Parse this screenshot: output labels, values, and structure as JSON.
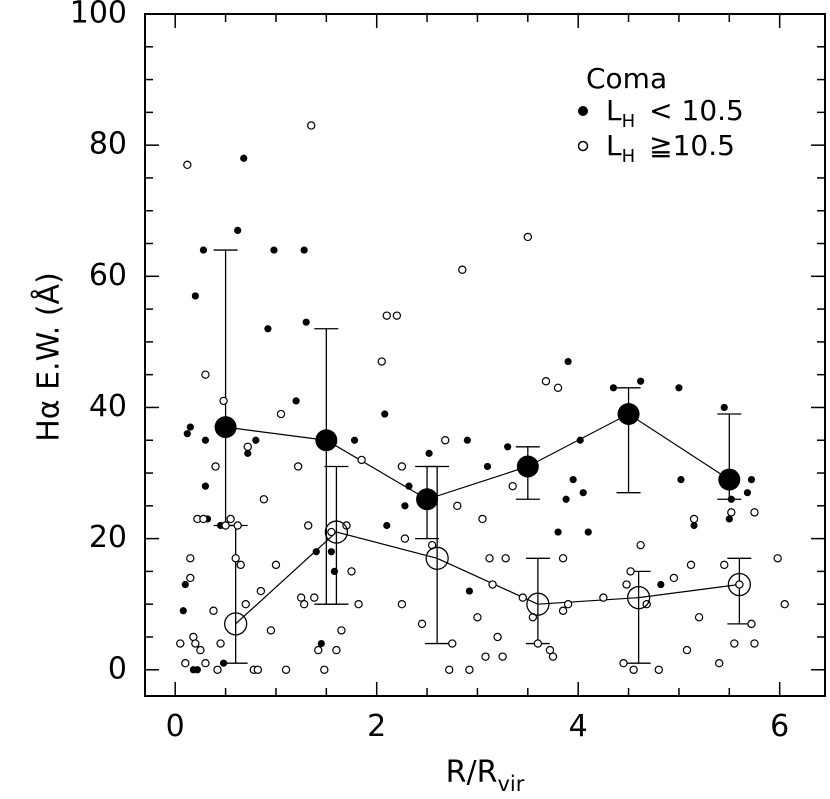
{
  "chart_data": {
    "type": "scatter",
    "title": "",
    "xlabel": {
      "base": "R/R",
      "sub": "vir"
    },
    "ylabel": "Hα   E.W. (Å)",
    "xlim": [
      -0.3,
      6.45
    ],
    "ylim": [
      -4,
      100
    ],
    "x_ticks": [
      0,
      2,
      4,
      6
    ],
    "x_tick_labels": [
      "0",
      "2",
      "4",
      "6"
    ],
    "y_ticks": [
      0,
      20,
      40,
      60,
      80,
      100
    ],
    "y_tick_labels": [
      "0",
      "20",
      "40",
      "60",
      "80",
      "100"
    ],
    "grid": false,
    "legend": {
      "placement": "top-right",
      "title": "Coma",
      "entries": [
        {
          "marker": "filled",
          "base": "L",
          "sub": "H",
          "rest": "< 10.5"
        },
        {
          "marker": "open",
          "base": "L",
          "sub": "H",
          "rest": "≧10.5"
        }
      ]
    },
    "series": [
      {
        "name": "L_H < 10.5 binned",
        "style": "filled-large",
        "x": [
          0.5,
          1.5,
          2.5,
          3.5,
          4.5,
          5.5
        ],
        "y": [
          37,
          35,
          26,
          31,
          39,
          29
        ],
        "err_low": [
          22,
          10,
          20,
          26,
          27,
          26
        ],
        "err_high": [
          64,
          52,
          31,
          34,
          43,
          39
        ]
      },
      {
        "name": "L_H >= 10.5 binned",
        "style": "open-large",
        "x": [
          0.6,
          1.6,
          2.6,
          3.6,
          4.6,
          5.6
        ],
        "y": [
          7,
          21,
          17,
          10,
          11,
          13
        ],
        "err_low": [
          1,
          10,
          4,
          4,
          1,
          7
        ],
        "err_high": [
          22,
          31,
          31,
          17,
          15,
          17
        ]
      },
      {
        "name": "L_H < 10.5 individual",
        "style": "filled-small",
        "points": [
          [
            0.08,
            9
          ],
          [
            0.1,
            13
          ],
          [
            0.12,
            36
          ],
          [
            0.15,
            37
          ],
          [
            0.18,
            0
          ],
          [
            0.2,
            57
          ],
          [
            0.22,
            0
          ],
          [
            0.28,
            64
          ],
          [
            0.3,
            35
          ],
          [
            0.3,
            28
          ],
          [
            0.32,
            23
          ],
          [
            0.45,
            22
          ],
          [
            0.48,
            1
          ],
          [
            0.62,
            67
          ],
          [
            0.68,
            78
          ],
          [
            0.72,
            33
          ],
          [
            0.8,
            35
          ],
          [
            0.92,
            52
          ],
          [
            0.98,
            64
          ],
          [
            1.2,
            41
          ],
          [
            1.28,
            64
          ],
          [
            1.3,
            53
          ],
          [
            1.4,
            18
          ],
          [
            1.45,
            4
          ],
          [
            1.55,
            18
          ],
          [
            1.58,
            15
          ],
          [
            1.78,
            35
          ],
          [
            2.08,
            39
          ],
          [
            2.1,
            22
          ],
          [
            2.28,
            25
          ],
          [
            2.32,
            28
          ],
          [
            2.52,
            33
          ],
          [
            2.55,
            19
          ],
          [
            2.9,
            35
          ],
          [
            2.92,
            12
          ],
          [
            3.1,
            31
          ],
          [
            3.3,
            34
          ],
          [
            3.8,
            21
          ],
          [
            3.88,
            26
          ],
          [
            3.9,
            47
          ],
          [
            3.95,
            29
          ],
          [
            4.02,
            35
          ],
          [
            4.05,
            27
          ],
          [
            4.1,
            21
          ],
          [
            4.35,
            43
          ],
          [
            4.5,
            40
          ],
          [
            4.62,
            44
          ],
          [
            4.82,
            13
          ],
          [
            5.0,
            43
          ],
          [
            5.02,
            29
          ],
          [
            5.15,
            22
          ],
          [
            5.45,
            40
          ],
          [
            5.5,
            23
          ],
          [
            5.52,
            26
          ],
          [
            5.68,
            27
          ],
          [
            5.72,
            29
          ]
        ]
      },
      {
        "name": "L_H >= 10.5 individual",
        "style": "open-small",
        "points": [
          [
            0.05,
            4
          ],
          [
            0.1,
            1
          ],
          [
            0.12,
            77
          ],
          [
            0.15,
            17
          ],
          [
            0.15,
            14
          ],
          [
            0.18,
            5
          ],
          [
            0.2,
            4
          ],
          [
            0.22,
            23
          ],
          [
            0.25,
            3
          ],
          [
            0.28,
            23
          ],
          [
            0.3,
            45
          ],
          [
            0.3,
            1
          ],
          [
            0.38,
            9
          ],
          [
            0.4,
            31
          ],
          [
            0.42,
            0
          ],
          [
            0.45,
            4
          ],
          [
            0.48,
            41
          ],
          [
            0.5,
            22
          ],
          [
            0.55,
            23
          ],
          [
            0.6,
            17
          ],
          [
            0.62,
            22
          ],
          [
            0.65,
            16
          ],
          [
            0.7,
            10
          ],
          [
            0.72,
            34
          ],
          [
            0.78,
            0
          ],
          [
            0.82,
            0
          ],
          [
            0.85,
            12
          ],
          [
            0.88,
            26
          ],
          [
            0.95,
            6
          ],
          [
            1.0,
            16
          ],
          [
            1.05,
            39
          ],
          [
            1.1,
            0
          ],
          [
            1.22,
            31
          ],
          [
            1.25,
            11
          ],
          [
            1.28,
            10
          ],
          [
            1.32,
            22
          ],
          [
            1.35,
            83
          ],
          [
            1.38,
            11
          ],
          [
            1.42,
            3
          ],
          [
            1.48,
            0
          ],
          [
            1.55,
            21
          ],
          [
            1.6,
            3
          ],
          [
            1.65,
            6
          ],
          [
            1.7,
            22
          ],
          [
            1.75,
            15
          ],
          [
            1.82,
            10
          ],
          [
            1.85,
            32
          ],
          [
            2.05,
            47
          ],
          [
            2.1,
            54
          ],
          [
            2.2,
            54
          ],
          [
            2.25,
            31
          ],
          [
            2.25,
            10
          ],
          [
            2.28,
            20
          ],
          [
            2.45,
            7
          ],
          [
            2.55,
            19
          ],
          [
            2.68,
            35
          ],
          [
            2.72,
            0
          ],
          [
            2.75,
            4
          ],
          [
            2.8,
            25
          ],
          [
            2.85,
            61
          ],
          [
            2.92,
            0
          ],
          [
            3.0,
            8
          ],
          [
            3.05,
            23
          ],
          [
            3.08,
            2
          ],
          [
            3.12,
            17
          ],
          [
            3.15,
            13
          ],
          [
            3.2,
            5
          ],
          [
            3.25,
            2
          ],
          [
            3.28,
            17
          ],
          [
            3.35,
            28
          ],
          [
            3.45,
            11
          ],
          [
            3.5,
            66
          ],
          [
            3.55,
            8
          ],
          [
            3.6,
            4
          ],
          [
            3.68,
            44
          ],
          [
            3.72,
            3
          ],
          [
            3.75,
            2
          ],
          [
            3.8,
            43
          ],
          [
            3.85,
            17
          ],
          [
            3.85,
            9
          ],
          [
            3.9,
            10
          ],
          [
            4.25,
            11
          ],
          [
            4.45,
            1
          ],
          [
            4.48,
            13
          ],
          [
            4.52,
            15
          ],
          [
            4.55,
            0
          ],
          [
            4.62,
            19
          ],
          [
            4.68,
            10
          ],
          [
            4.8,
            0
          ],
          [
            4.95,
            14
          ],
          [
            5.08,
            3
          ],
          [
            5.12,
            16
          ],
          [
            5.15,
            23
          ],
          [
            5.2,
            8
          ],
          [
            5.4,
            1
          ],
          [
            5.45,
            16
          ],
          [
            5.52,
            24
          ],
          [
            5.55,
            4
          ],
          [
            5.6,
            13
          ],
          [
            5.72,
            7
          ],
          [
            5.75,
            4
          ],
          [
            5.75,
            24
          ],
          [
            5.98,
            17
          ],
          [
            6.05,
            10
          ]
        ]
      }
    ]
  }
}
